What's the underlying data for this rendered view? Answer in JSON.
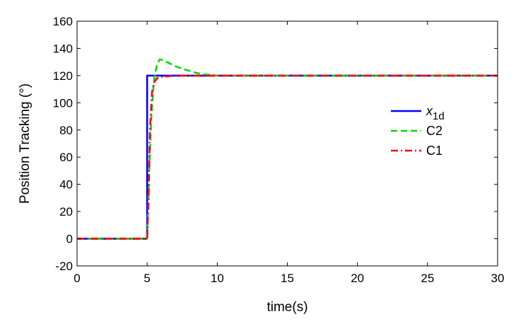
{
  "chart_data": {
    "type": "line",
    "xlabel": "time(s)",
    "ylabel": "Position Tracking (°)",
    "xlim": [
      0,
      30
    ],
    "ylim": [
      -20,
      160
    ],
    "x_ticks": [
      "0",
      "5",
      "10",
      "15",
      "20",
      "25",
      "30"
    ],
    "y_ticks": [
      "-20",
      "0",
      "20",
      "40",
      "60",
      "80",
      "100",
      "120",
      "140",
      "160"
    ],
    "grid": false,
    "legend_position": "right",
    "series": [
      {
        "name": "x1d",
        "name_main": "x",
        "name_sub": "1d",
        "color": "#0000ff",
        "style": "solid",
        "x": [
          0,
          5,
          5,
          30
        ],
        "y": [
          0,
          0,
          120,
          120
        ]
      },
      {
        "name": "C2",
        "color": "#00dd00",
        "style": "dashed",
        "x": [
          0,
          5.0,
          5.15,
          5.3,
          5.5,
          5.7,
          5.9,
          6.2,
          6.6,
          7.0,
          7.5,
          8.0,
          8.5,
          9.0,
          9.5,
          10,
          11,
          30
        ],
        "y": [
          0,
          0,
          50,
          90,
          118,
          128,
          132,
          131,
          129,
          127,
          125,
          123.5,
          122,
          121,
          120.5,
          120,
          120,
          120
        ]
      },
      {
        "name": "C1",
        "color": "#ff0000",
        "style": "dashdot",
        "x": [
          0,
          5.0,
          5.1,
          5.2,
          5.35,
          5.5,
          5.7,
          6.0,
          6.5,
          7.0,
          30
        ],
        "y": [
          0,
          0,
          30,
          80,
          108,
          115,
          118,
          119,
          119.5,
          120,
          120
        ]
      }
    ]
  }
}
